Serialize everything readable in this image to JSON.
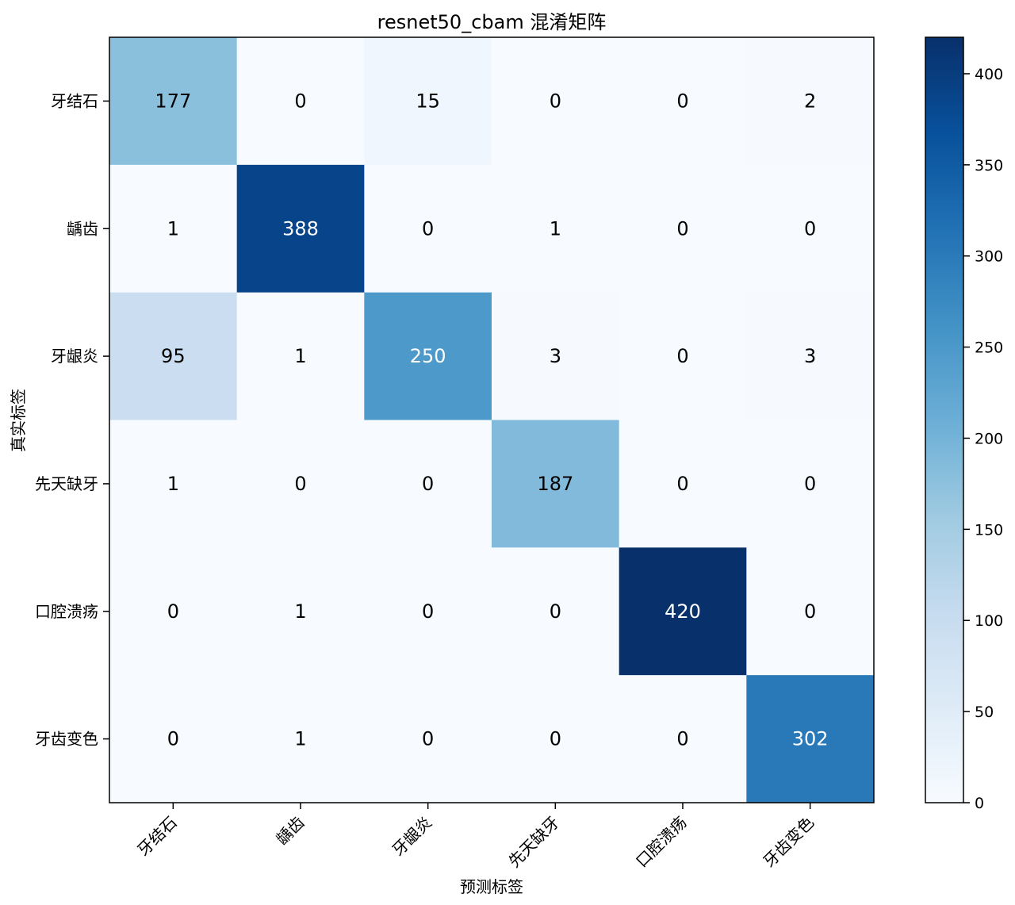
{
  "chart_data": {
    "type": "heatmap",
    "title": "resnet50_cbam 混淆矩阵",
    "xlabel": "预测标签",
    "ylabel": "真实标签",
    "categories": [
      "牙结石",
      "龋齿",
      "牙龈炎",
      "先天缺牙",
      "口腔溃疡",
      "牙齿变色"
    ],
    "matrix": [
      [
        177,
        0,
        15,
        0,
        0,
        2
      ],
      [
        1,
        388,
        0,
        1,
        0,
        0
      ],
      [
        95,
        1,
        250,
        3,
        0,
        3
      ],
      [
        1,
        0,
        0,
        187,
        0,
        0
      ],
      [
        0,
        1,
        0,
        0,
        420,
        0
      ],
      [
        0,
        1,
        0,
        0,
        0,
        302
      ]
    ],
    "colorbar": {
      "colormap": "Blues",
      "range": [
        0,
        420
      ],
      "ticks": [
        0,
        50,
        100,
        150,
        200,
        250,
        300,
        350,
        400
      ]
    }
  }
}
